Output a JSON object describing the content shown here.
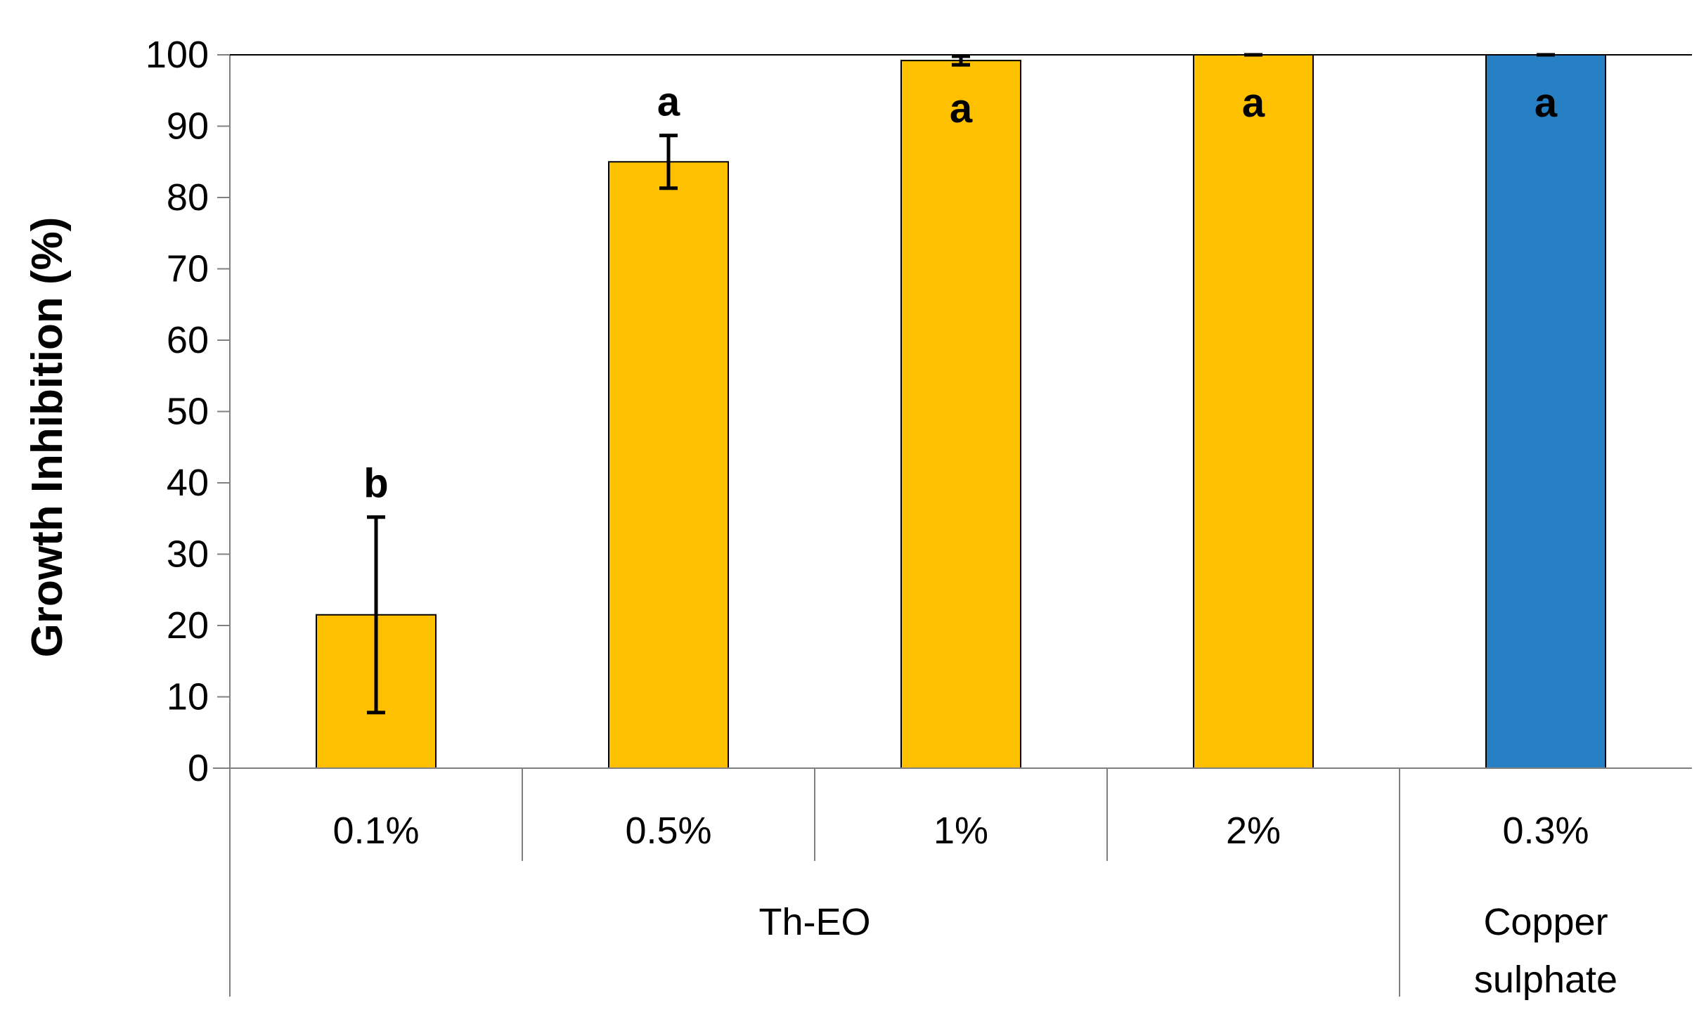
{
  "chart_data": {
    "type": "bar",
    "ylabel": "Growth Inhibition (%)",
    "ylim": [
      0,
      100
    ],
    "yticks": [
      0,
      10,
      20,
      30,
      40,
      50,
      60,
      70,
      80,
      90,
      100
    ],
    "categories": [
      "0.1%",
      "0.5%",
      "1%",
      "2%",
      "0.3%"
    ],
    "values": [
      21.5,
      85,
      99.2,
      100,
      100
    ],
    "error": [
      13.7,
      3.7,
      0.6,
      0,
      0
    ],
    "significance": [
      "b",
      "a",
      "a",
      "a",
      "a"
    ],
    "bar_colors": [
      "#FFC000",
      "#FFC000",
      "#FFC000",
      "#FFC000",
      "#2780C3"
    ],
    "groups": [
      {
        "label": "Th-EO",
        "span": [
          0,
          3
        ]
      },
      {
        "label_lines": [
          "Copper",
          "sulphate"
        ],
        "span": [
          4,
          4
        ]
      }
    ],
    "grid": false
  }
}
